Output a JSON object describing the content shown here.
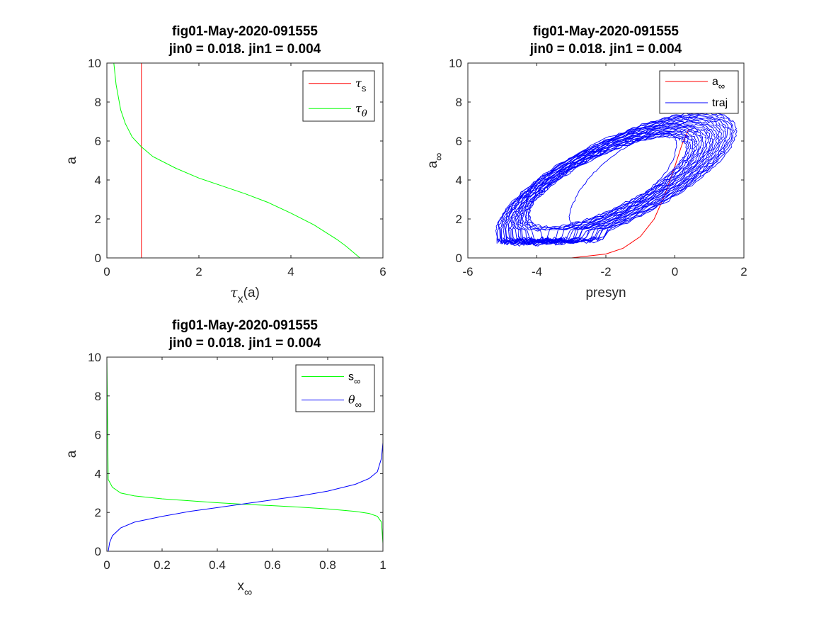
{
  "chart_data": [
    {
      "type": "line",
      "title": "fig01-May-2020-091555",
      "subtitle": "jin0 = 0.018. jin1 = 0.004",
      "xlabel": "τx(a)",
      "xlabel_parts": {
        "sym": "τ",
        "sub": "x",
        "rest": "(a)"
      },
      "ylabel": "a",
      "xlim": [
        0,
        6
      ],
      "ylim": [
        0,
        10
      ],
      "xticks": [
        0,
        2,
        4,
        6
      ],
      "yticks": [
        0,
        2,
        4,
        6,
        8,
        10
      ],
      "legend_position": "top-right",
      "series": [
        {
          "name": "τs",
          "sym": "τ",
          "sub": "s",
          "color": "#ff0000",
          "x": [
            0.75,
            0.75
          ],
          "y": [
            0,
            10
          ]
        },
        {
          "name": "τθ",
          "sym": "τ",
          "sub": "θ",
          "color": "#00ff00",
          "x": [
            0.15,
            0.2,
            0.3,
            0.4,
            0.55,
            0.75,
            1.0,
            1.5,
            2.0,
            2.5,
            3.0,
            3.5,
            4.0,
            4.5,
            5.0,
            5.2,
            5.4,
            5.5
          ],
          "y": [
            10,
            8.9,
            7.6,
            6.9,
            6.2,
            5.7,
            5.2,
            4.6,
            4.1,
            3.7,
            3.3,
            2.85,
            2.3,
            1.7,
            0.95,
            0.6,
            0.2,
            0
          ]
        }
      ]
    },
    {
      "type": "line",
      "title": "fig01-May-2020-091555",
      "subtitle": "jin0 = 0.018. jin1 = 0.004",
      "xlabel": "presyn",
      "ylabel": "a∞",
      "ylabel_parts": {
        "sym": "a",
        "sub": "∞"
      },
      "xlim": [
        -6,
        2
      ],
      "ylim": [
        0,
        10
      ],
      "xticks": [
        -6,
        -4,
        -2,
        0,
        2
      ],
      "yticks": [
        0,
        2,
        4,
        6,
        8,
        10
      ],
      "legend_position": "top-right",
      "series": [
        {
          "name": "a∞",
          "sym": "a",
          "sub": "∞",
          "color": "#ff0000",
          "x": [
            -3.0,
            -2.0,
            -1.5,
            -1.0,
            -0.6,
            -0.3,
            0.0,
            0.2,
            0.4
          ],
          "y": [
            0.0,
            0.2,
            0.5,
            1.1,
            2.0,
            3.2,
            4.7,
            5.8,
            6.6
          ]
        },
        {
          "name": "traj",
          "color": "#0000ff",
          "loops": 24,
          "center": [
            -1.8,
            3.9
          ],
          "shape": "noisy elliptical orbit; x from -5.6 to 2.0, y from 0.6 to 7.6",
          "inner_loop": {
            "x_range": [
              -3.2,
              0.2
            ],
            "y_range": [
              1.3,
              6.6
            ]
          }
        }
      ]
    },
    {
      "type": "line",
      "title": "fig01-May-2020-091555",
      "subtitle": "jin0 = 0.018. jin1 = 0.004",
      "xlabel": "x∞",
      "xlabel_parts": {
        "sym": "x",
        "sub": "∞"
      },
      "ylabel": "a",
      "xlim": [
        0,
        1
      ],
      "ylim": [
        0,
        10
      ],
      "xticks": [
        0,
        0.2,
        0.4,
        0.6,
        0.8,
        1
      ],
      "xtick_labels": [
        "0",
        "0.2",
        "0.4",
        "0.6",
        "0.8",
        "1"
      ],
      "yticks": [
        0,
        2,
        4,
        6,
        8,
        10
      ],
      "legend_position": "top-right",
      "series": [
        {
          "name": "s∞",
          "sym": "s",
          "sub": "∞",
          "color": "#00ff00",
          "x": [
            0.0,
            0.005,
            0.02,
            0.05,
            0.1,
            0.2,
            0.3,
            0.4,
            0.5,
            0.6,
            0.7,
            0.8,
            0.9,
            0.95,
            0.98,
            0.995,
            1.0
          ],
          "y": [
            10,
            3.7,
            3.3,
            3.0,
            2.85,
            2.7,
            2.6,
            2.5,
            2.42,
            2.35,
            2.27,
            2.18,
            2.05,
            1.95,
            1.8,
            1.5,
            0.4
          ]
        },
        {
          "name": "θ∞",
          "sym": "θ",
          "sub": "∞",
          "color": "#0000ff",
          "x": [
            0.005,
            0.01,
            0.02,
            0.05,
            0.1,
            0.2,
            0.3,
            0.4,
            0.5,
            0.6,
            0.7,
            0.8,
            0.9,
            0.95,
            0.98,
            0.995,
            1.0
          ],
          "y": [
            0.0,
            0.45,
            0.8,
            1.2,
            1.5,
            1.8,
            2.05,
            2.25,
            2.45,
            2.65,
            2.85,
            3.1,
            3.45,
            3.75,
            4.1,
            4.8,
            5.6
          ]
        }
      ]
    }
  ]
}
